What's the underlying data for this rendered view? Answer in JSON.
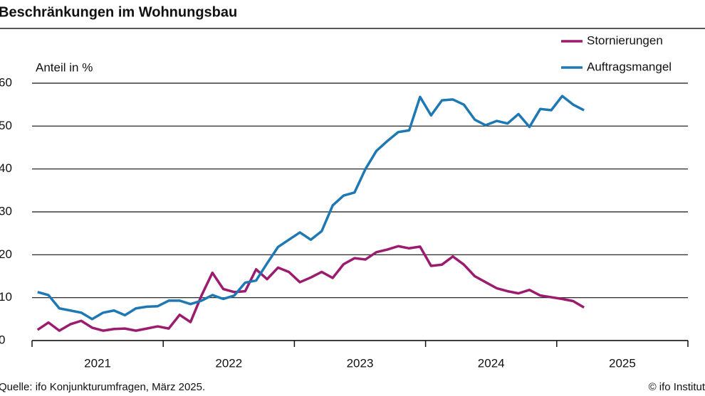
{
  "chart_data": {
    "type": "line",
    "title": "Beschränkungen im Wohnungsbau",
    "y_label": "Anteil in %",
    "source": "Quelle: ifo Konjunkturumfragen, März 2025.",
    "credit": "© ifo Institut",
    "categories": [
      "2021",
      "2022",
      "2023",
      "2024",
      "2025"
    ],
    "xlim": [
      2021,
      2026
    ],
    "xticks": [
      2021,
      2022,
      2023,
      2024,
      2025,
      2026
    ],
    "x": [
      2021.042,
      2021.125,
      2021.208,
      2021.292,
      2021.375,
      2021.458,
      2021.542,
      2021.625,
      2021.708,
      2021.792,
      2021.875,
      2021.958,
      2022.042,
      2022.125,
      2022.208,
      2022.292,
      2022.375,
      2022.458,
      2022.542,
      2022.625,
      2022.708,
      2022.792,
      2022.875,
      2022.958,
      2023.042,
      2023.125,
      2023.208,
      2023.292,
      2023.375,
      2023.458,
      2023.542,
      2023.625,
      2023.708,
      2023.792,
      2023.875,
      2023.958,
      2024.042,
      2024.125,
      2024.208,
      2024.292,
      2024.375,
      2024.458,
      2024.542,
      2024.625,
      2024.708,
      2024.792,
      2024.875,
      2024.958,
      2025.042,
      2025.125,
      2025.208
    ],
    "series": [
      {
        "name": "Stornierungen",
        "color": "#9b1b6e",
        "values": [
          2.5,
          4.2,
          2.3,
          3.8,
          4.6,
          3.0,
          2.3,
          2.7,
          2.8,
          2.3,
          2.8,
          3.3,
          2.8,
          6.0,
          4.3,
          10.5,
          15.8,
          12.0,
          11.3,
          11.5,
          16.6,
          14.3,
          17.0,
          16.0,
          13.6,
          14.7,
          16.0,
          14.6,
          17.8,
          19.2,
          18.9,
          20.6,
          21.2,
          22.0,
          21.5,
          21.9,
          17.4,
          17.7,
          19.6,
          17.7,
          15.0,
          13.6,
          12.2,
          11.5,
          11.0,
          11.8,
          10.5,
          10.1,
          9.7,
          9.2,
          7.7
        ]
      },
      {
        "name": "Auftragsmangel",
        "color": "#1e78b4",
        "values": [
          11.3,
          10.6,
          7.5,
          7.0,
          6.5,
          5.0,
          6.5,
          7.0,
          5.9,
          7.5,
          7.9,
          8.0,
          9.3,
          9.3,
          8.5,
          9.3,
          10.6,
          9.7,
          10.5,
          13.5,
          14.0,
          18.0,
          21.8,
          23.5,
          25.2,
          23.5,
          25.5,
          31.5,
          33.8,
          34.5,
          40.0,
          44.2,
          46.5,
          48.6,
          49.0,
          56.8,
          52.5,
          56.0,
          56.2,
          55.0,
          51.5,
          50.2,
          51.2,
          50.6,
          52.8,
          49.8,
          54.0,
          53.7,
          57.0,
          55.0,
          53.7
        ]
      }
    ],
    "ylim": [
      0,
      60
    ],
    "yticks": [
      0,
      10,
      20,
      30,
      40,
      50,
      60
    ],
    "grid": true,
    "legend": "top-right"
  }
}
